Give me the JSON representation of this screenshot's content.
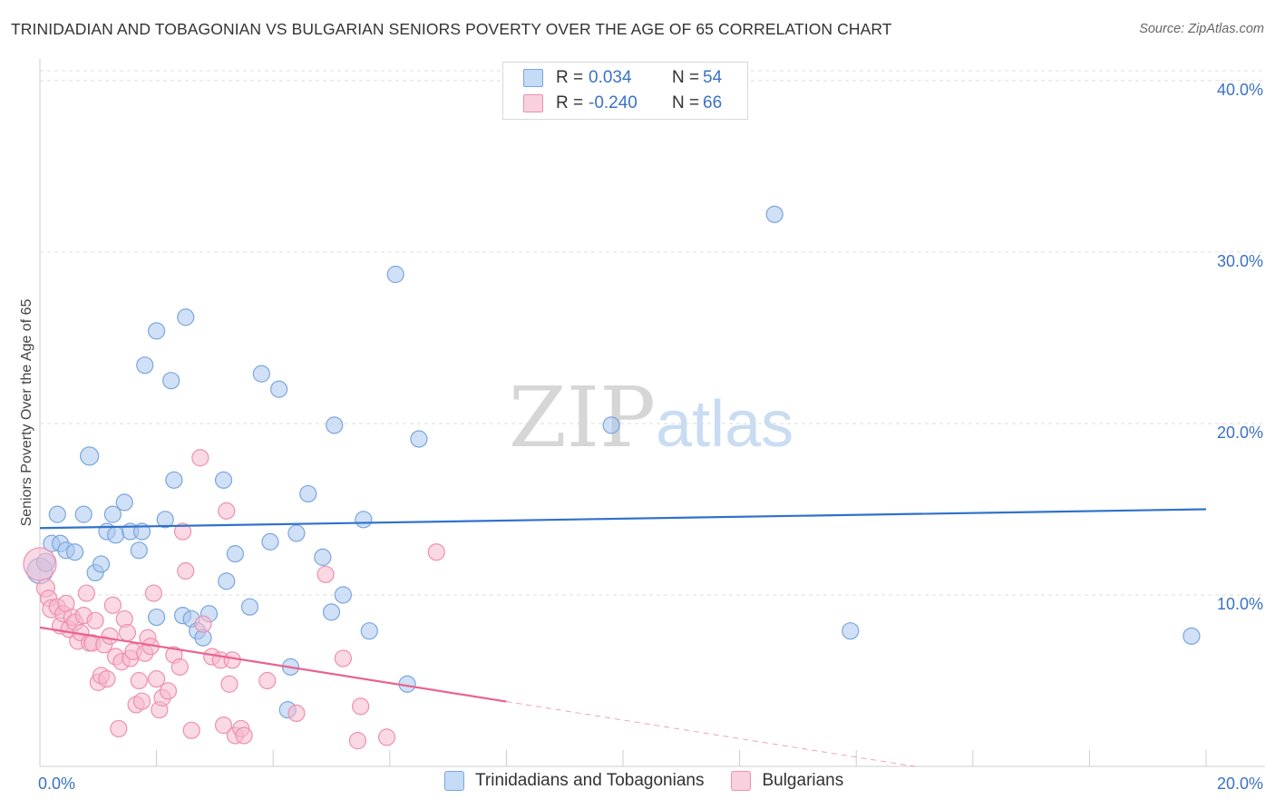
{
  "chart_data": {
    "type": "scatter",
    "title": "TRINIDADIAN AND TOBAGONIAN VS BULGARIAN SENIORS POVERTY OVER THE AGE OF 65 CORRELATION CHART",
    "source": "Source: ZipAtlas.com",
    "ylabel": "Seniors Poverty Over the Age of 65",
    "xlabel": "",
    "x_tick_labels": [
      "0.0%",
      "20.0%"
    ],
    "y_tick_labels": [
      "10.0%",
      "20.0%",
      "30.0%",
      "40.0%"
    ],
    "y_ticks": [
      10,
      20,
      30,
      40
    ],
    "xlim": [
      0,
      20
    ],
    "ylim": [
      0,
      41
    ],
    "watermark": "ZIPatlas",
    "legend": {
      "rows": [
        {
          "r_label": "R =",
          "r_value": "0.034",
          "n_label": "N =",
          "n_value": "54",
          "color": "#a8c8f0"
        },
        {
          "r_label": "R =",
          "r_value": "-0.240",
          "n_label": "N =",
          "n_value": "66",
          "color": "#f6b8cc"
        }
      ]
    },
    "series": [
      {
        "name": "Trinidadians and Tobagonians",
        "fill": "#a9c7ee",
        "stroke": "#7aa6de",
        "line_color": "#2f72cc",
        "trend": {
          "x": [
            0,
            20
          ],
          "y": [
            13.9,
            15.0
          ],
          "solid_to": 20
        },
        "points": [
          [
            0.0,
            11.4,
            14
          ],
          [
            0.1,
            11.9,
            10
          ],
          [
            0.2,
            13.0,
            9
          ],
          [
            0.3,
            14.7,
            9
          ],
          [
            0.35,
            13.0,
            9
          ],
          [
            0.45,
            12.6,
            9
          ],
          [
            0.6,
            12.5,
            9
          ],
          [
            0.75,
            14.7,
            9
          ],
          [
            0.85,
            18.1,
            10
          ],
          [
            0.95,
            11.3,
            9
          ],
          [
            1.05,
            11.8,
            9
          ],
          [
            1.15,
            13.7,
            9
          ],
          [
            1.25,
            14.7,
            9
          ],
          [
            1.3,
            13.5,
            9
          ],
          [
            1.45,
            15.4,
            9
          ],
          [
            1.55,
            13.7,
            9
          ],
          [
            1.7,
            12.6,
            9
          ],
          [
            1.75,
            13.7,
            9
          ],
          [
            1.8,
            23.4,
            9
          ],
          [
            2.0,
            25.4,
            9
          ],
          [
            2.0,
            8.7,
            9
          ],
          [
            2.15,
            14.4,
            9
          ],
          [
            2.25,
            22.5,
            9
          ],
          [
            2.3,
            16.7,
            9
          ],
          [
            2.45,
            8.8,
            9
          ],
          [
            2.5,
            26.2,
            9
          ],
          [
            2.6,
            8.6,
            9
          ],
          [
            2.7,
            7.9,
            9
          ],
          [
            2.8,
            7.5,
            9
          ],
          [
            2.9,
            8.9,
            9
          ],
          [
            3.15,
            16.7,
            9
          ],
          [
            3.2,
            10.8,
            9
          ],
          [
            3.35,
            12.4,
            9
          ],
          [
            3.6,
            9.3,
            9
          ],
          [
            3.8,
            22.9,
            9
          ],
          [
            3.95,
            13.1,
            9
          ],
          [
            4.1,
            22.0,
            9
          ],
          [
            4.25,
            3.3,
            9
          ],
          [
            4.3,
            5.8,
            9
          ],
          [
            4.4,
            13.6,
            9
          ],
          [
            4.6,
            15.9,
            9
          ],
          [
            4.85,
            12.2,
            9
          ],
          [
            5.0,
            9.0,
            9
          ],
          [
            5.05,
            19.9,
            9
          ],
          [
            5.2,
            10.0,
            9
          ],
          [
            5.55,
            14.4,
            9
          ],
          [
            5.65,
            7.9,
            9
          ],
          [
            6.1,
            28.7,
            9
          ],
          [
            6.3,
            4.8,
            9
          ],
          [
            6.5,
            19.1,
            9
          ],
          [
            9.8,
            19.9,
            9
          ],
          [
            12.6,
            32.2,
            9
          ],
          [
            13.9,
            7.9,
            9
          ],
          [
            19.75,
            7.6,
            9
          ]
        ]
      },
      {
        "name": "Bulgarians",
        "fill": "#f6b9cd",
        "stroke": "#ee8fb0",
        "line_color": "#e8638f",
        "trend": {
          "x": [
            0,
            15
          ],
          "y": [
            8.1,
            0.0
          ],
          "solid_to": 8
        },
        "points": [
          [
            0.0,
            11.8,
            18
          ],
          [
            0.1,
            10.4,
            10
          ],
          [
            0.15,
            9.8,
            9
          ],
          [
            0.2,
            9.2,
            10
          ],
          [
            0.3,
            9.3,
            9
          ],
          [
            0.35,
            8.2,
            9
          ],
          [
            0.4,
            8.9,
            9
          ],
          [
            0.45,
            9.5,
            9
          ],
          [
            0.5,
            8.0,
            9
          ],
          [
            0.55,
            8.7,
            9
          ],
          [
            0.6,
            8.4,
            9
          ],
          [
            0.65,
            7.3,
            9
          ],
          [
            0.7,
            7.8,
            9
          ],
          [
            0.75,
            8.8,
            9
          ],
          [
            0.8,
            10.1,
            9
          ],
          [
            0.85,
            7.2,
            9
          ],
          [
            0.9,
            7.2,
            9
          ],
          [
            0.95,
            8.5,
            9
          ],
          [
            1.0,
            4.9,
            9
          ],
          [
            1.05,
            5.3,
            9
          ],
          [
            1.1,
            7.1,
            9
          ],
          [
            1.15,
            5.1,
            9
          ],
          [
            1.2,
            7.6,
            9
          ],
          [
            1.25,
            9.4,
            9
          ],
          [
            1.3,
            6.4,
            9
          ],
          [
            1.35,
            2.2,
            9
          ],
          [
            1.4,
            6.1,
            9
          ],
          [
            1.45,
            8.6,
            9
          ],
          [
            1.5,
            7.8,
            9
          ],
          [
            1.55,
            6.3,
            9
          ],
          [
            1.6,
            6.7,
            9
          ],
          [
            1.65,
            3.6,
            9
          ],
          [
            1.7,
            5.0,
            9
          ],
          [
            1.75,
            3.8,
            9
          ],
          [
            1.8,
            6.6,
            9
          ],
          [
            1.85,
            7.5,
            9
          ],
          [
            1.9,
            7.0,
            9
          ],
          [
            1.95,
            10.1,
            9
          ],
          [
            2.0,
            5.1,
            9
          ],
          [
            2.05,
            3.3,
            9
          ],
          [
            2.1,
            4.0,
            9
          ],
          [
            2.2,
            4.4,
            9
          ],
          [
            2.3,
            6.5,
            9
          ],
          [
            2.4,
            5.8,
            9
          ],
          [
            2.45,
            13.7,
            9
          ],
          [
            2.5,
            11.4,
            9
          ],
          [
            2.6,
            2.1,
            9
          ],
          [
            2.75,
            18.0,
            9
          ],
          [
            2.8,
            8.3,
            9
          ],
          [
            2.95,
            6.4,
            9
          ],
          [
            3.1,
            6.2,
            9
          ],
          [
            3.15,
            2.4,
            9
          ],
          [
            3.2,
            14.9,
            9
          ],
          [
            3.25,
            4.8,
            9
          ],
          [
            3.3,
            6.2,
            9
          ],
          [
            3.35,
            1.8,
            9
          ],
          [
            3.45,
            2.2,
            9
          ],
          [
            3.5,
            1.8,
            9
          ],
          [
            3.9,
            5.0,
            9
          ],
          [
            4.4,
            3.1,
            9
          ],
          [
            4.9,
            11.2,
            9
          ],
          [
            5.2,
            6.3,
            9
          ],
          [
            5.45,
            1.5,
            9
          ],
          [
            5.5,
            3.5,
            9
          ],
          [
            5.95,
            1.7,
            9
          ],
          [
            6.8,
            12.5,
            9
          ]
        ]
      }
    ]
  },
  "bottom_legend": {
    "items": [
      {
        "label": "Trinidadians and Tobagonians",
        "color": "#a9c7ee",
        "stroke": "#7aa6de"
      },
      {
        "label": "Bulgarians",
        "color": "#f6b9cd",
        "stroke": "#ee8fb0"
      }
    ]
  }
}
